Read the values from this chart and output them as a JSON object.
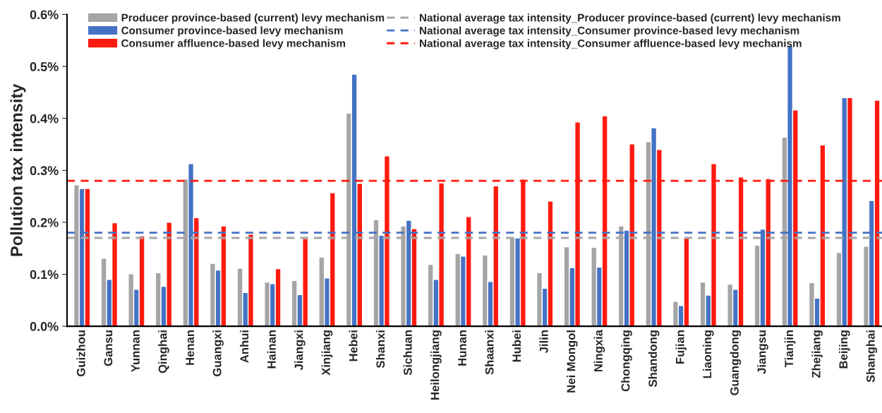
{
  "chart_data": {
    "type": "bar",
    "ylabel": "Pollution tax intensity",
    "categories": [
      "Guizhou",
      "Gansu",
      "Yunnan",
      "Qinghai",
      "Henan",
      "Guangxi",
      "Anhui",
      "Hainan",
      "Jiangxi",
      "Xinjiang",
      "Hebei",
      "Shanxi",
      "Sichuan",
      "Heilongjiang",
      "Hunan",
      "Shaanxi",
      "Hubei",
      "Jilin",
      "Nei Mongol",
      "Ningxia",
      "Chongqing",
      "Shandong",
      "Fujian",
      "Liaoning",
      "Guangdong",
      "Jiangsu",
      "Tianjin",
      "Zhejiang",
      "Beijing",
      "Shanghai"
    ],
    "series": [
      {
        "name": "Producer province-based (current) levy mechanism",
        "color": "#a5a5a5",
        "values": [
          0.272,
          0.131,
          0.101,
          0.103,
          0.283,
          0.121,
          0.112,
          0.085,
          0.088,
          0.133,
          0.41,
          0.205,
          0.193,
          0.119,
          0.14,
          0.137,
          0.171,
          0.103,
          0.153,
          0.152,
          0.193,
          0.355,
          0.048,
          0.085,
          0.081,
          0.156,
          0.364,
          0.084,
          0.142,
          0.154
        ]
      },
      {
        "name": "Consumer province-based levy mechanism",
        "color": "#4472c4",
        "values": [
          0.265,
          0.09,
          0.071,
          0.077,
          0.313,
          0.108,
          0.065,
          0.082,
          0.061,
          0.093,
          0.485,
          0.175,
          0.204,
          0.09,
          0.135,
          0.086,
          0.17,
          0.073,
          0.113,
          0.114,
          0.185,
          0.382,
          0.04,
          0.06,
          0.071,
          0.187,
          0.54,
          0.054,
          0.44,
          0.242
        ]
      },
      {
        "name": "Consumer affluence-based levy mechanism",
        "color": "#ff1a0f",
        "values": [
          0.265,
          0.199,
          0.174,
          0.2,
          0.209,
          0.193,
          0.177,
          0.111,
          0.169,
          0.257,
          0.275,
          0.328,
          0.188,
          0.276,
          0.211,
          0.27,
          0.283,
          0.241,
          0.393,
          0.405,
          0.351,
          0.34,
          0.17,
          0.313,
          0.287,
          0.284,
          0.416,
          0.349,
          0.44,
          0.435
        ]
      }
    ],
    "ref_lines": [
      {
        "axis": "y",
        "value": 0.17,
        "label": "National average tax intensity_Producer province-based (current) levy mechanism",
        "color": "#a5a5a5",
        "line_style": "dashed"
      },
      {
        "axis": "y",
        "value": 0.18,
        "label": "National average tax intensity_Consumer province-based levy mechanism",
        "color": "#4472c4",
        "line_style": "dashed"
      },
      {
        "axis": "y",
        "value": 0.28,
        "label": "National average tax intensity_Consumer affluence-based levy mechanism",
        "color": "#ff1a0f",
        "line_style": "dashed"
      }
    ],
    "ylim": [
      0,
      0.6
    ],
    "yticks": [
      {
        "value": 0,
        "label": "0.0%"
      },
      {
        "value": 0.1,
        "label": "0.1%"
      },
      {
        "value": 0.2,
        "label": "0.2%"
      },
      {
        "value": 0.3,
        "label": "0.3%"
      },
      {
        "value": 0.4,
        "label": "0.4%"
      },
      {
        "value": 0.5,
        "label": "0.5%"
      },
      {
        "value": 0.6,
        "label": "0.6%"
      }
    ],
    "grid": false,
    "legend": "top"
  }
}
